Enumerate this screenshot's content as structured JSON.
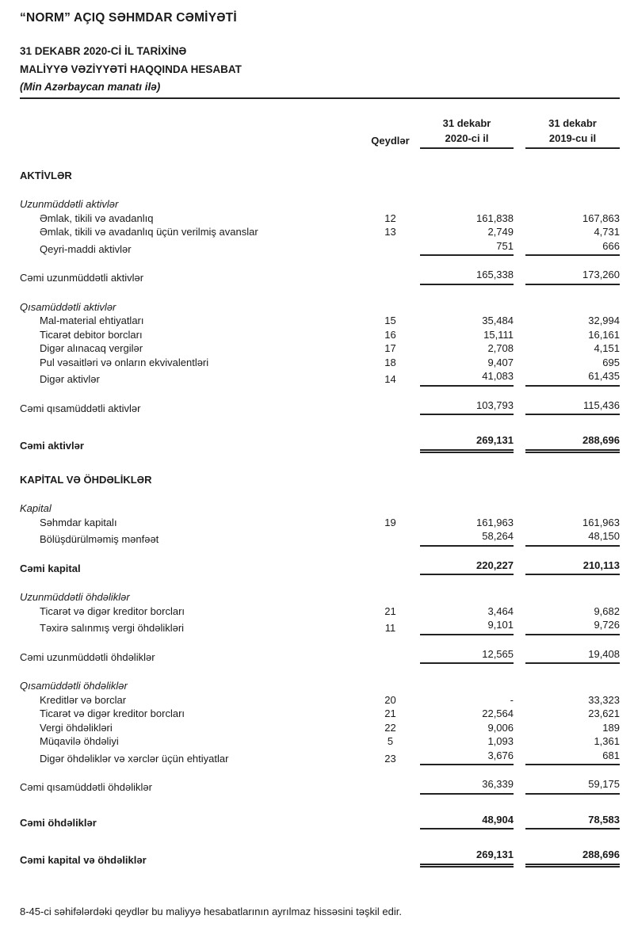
{
  "page": {
    "title": "“NORM” AÇIQ SƏHMDAR CƏMİYƏTİ",
    "subtitle_line1": "31 DEKABR 2020-Cİ İL TARİXİNƏ",
    "subtitle_line2": "MALİYYƏ VƏZİYYƏTİ HAQQINDA HESABAT",
    "units_note": "(Min Azərbaycan manatı ilə)",
    "footer_note": "8-45-ci səhifələrdəki qeydlər bu maliyyə hesabatlarının ayrılmaz hissəsini təşkil edir."
  },
  "table": {
    "columns": {
      "notes_label": "Qeydlər",
      "col_2020_line1": "31 dekabr",
      "col_2020_line2": "2020-ci il",
      "col_2019_line1": "31 dekabr",
      "col_2019_line2": "2019-cu il"
    },
    "rows": [
      {
        "kind": "section",
        "label": "AKTİVLƏR",
        "note": "",
        "v2020": "",
        "v2019": ""
      },
      {
        "kind": "group",
        "label": "Uzunmüddətli aktivlər",
        "note": "",
        "v2020": "",
        "v2019": ""
      },
      {
        "kind": "item",
        "label": "Əmlak, tikili və avadanlıq",
        "note": "12",
        "v2020": "161,838",
        "v2019": "167,863"
      },
      {
        "kind": "item",
        "label": "Əmlak, tikili və avadanlıq üçün verilmiş avanslar",
        "note": "13",
        "v2020": "2,749",
        "v2019": "4,731"
      },
      {
        "kind": "item",
        "label": "Qeyri-maddi aktivlər",
        "note": "",
        "v2020": "751",
        "v2019": "666",
        "rule": "single"
      },
      {
        "kind": "total",
        "label": "Cəmi uzunmüddətli aktivlər",
        "note": "",
        "v2020": "165,338",
        "v2019": "173,260",
        "rule": "single"
      },
      {
        "kind": "group",
        "label": "Qısamüddətli aktivlər",
        "note": "",
        "v2020": "",
        "v2019": ""
      },
      {
        "kind": "item",
        "label": "Mal-material ehtiyatları",
        "note": "15",
        "v2020": "35,484",
        "v2019": "32,994"
      },
      {
        "kind": "item",
        "label": "Ticarət debitor borcları",
        "note": "16",
        "v2020": "15,111",
        "v2019": "16,161"
      },
      {
        "kind": "item",
        "label": "Digər alınacaq vergilər",
        "note": "17",
        "v2020": "2,708",
        "v2019": "4,151"
      },
      {
        "kind": "item",
        "label": "Pul vəsaitləri və onların ekvivalentləri",
        "note": "18",
        "v2020": "9,407",
        "v2019": "695"
      },
      {
        "kind": "item",
        "label": "Digər aktivlər",
        "note": "14",
        "v2020": "41,083",
        "v2019": "61,435",
        "rule": "single"
      },
      {
        "kind": "total",
        "label": "Cəmi qısamüddətli aktivlər",
        "note": "",
        "v2020": "103,793",
        "v2019": "115,436",
        "rule": "single"
      },
      {
        "kind": "total",
        "label": "Cəmi aktivlər",
        "note": "",
        "v2020": "269,131",
        "v2019": "288,696",
        "rule": "double",
        "bold": true
      },
      {
        "kind": "section",
        "label": "KAPİTAL VƏ ÖHDƏLİKLƏR",
        "note": "",
        "v2020": "",
        "v2019": ""
      },
      {
        "kind": "group",
        "label": "Kapital",
        "note": "",
        "v2020": "",
        "v2019": ""
      },
      {
        "kind": "item",
        "label": "Səhmdar kapitalı",
        "note": "19",
        "v2020": "161,963",
        "v2019": "161,963"
      },
      {
        "kind": "item",
        "label": "Bölüşdürülməmiş mənfəət",
        "note": "",
        "v2020": "58,264",
        "v2019": "48,150",
        "rule": "single"
      },
      {
        "kind": "total",
        "label": "Cəmi kapital",
        "note": "",
        "v2020": "220,227",
        "v2019": "210,113",
        "rule": "single",
        "bold": true
      },
      {
        "kind": "group",
        "label": "Uzunmüddətli öhdəliklər",
        "note": "",
        "v2020": "",
        "v2019": ""
      },
      {
        "kind": "item",
        "label": "Ticarət və digər kreditor borcları",
        "note": "21",
        "v2020": "3,464",
        "v2019": "9,682"
      },
      {
        "kind": "item",
        "label": "Təxirə salınmış vergi öhdəlikləri",
        "note": "11",
        "v2020": "9,101",
        "v2019": "9,726",
        "rule": "single"
      },
      {
        "kind": "total",
        "label": "Cəmi uzunmüddətli öhdəliklər",
        "note": "",
        "v2020": "12,565",
        "v2019": "19,408",
        "rule": "single"
      },
      {
        "kind": "group",
        "label": "Qısamüddətli öhdəliklər",
        "note": "",
        "v2020": "",
        "v2019": ""
      },
      {
        "kind": "item",
        "label": "Kreditlər və borclar",
        "note": "20",
        "v2020": "-",
        "v2019": "33,323"
      },
      {
        "kind": "item",
        "label": "Ticarət və digər kreditor borcları",
        "note": "21",
        "v2020": "22,564",
        "v2019": "23,621"
      },
      {
        "kind": "item",
        "label": "Vergi öhdəlikləri",
        "note": "22",
        "v2020": "9,006",
        "v2019": "189"
      },
      {
        "kind": "item",
        "label": "Müqavilə öhdəliyi",
        "note": "5",
        "v2020": "1,093",
        "v2019": "1,361"
      },
      {
        "kind": "item",
        "label": "Digər öhdəliklər və xərclər üçün ehtiyatlar",
        "note": "23",
        "v2020": "3,676",
        "v2019": "681",
        "rule": "single"
      },
      {
        "kind": "total",
        "label": "Cəmi qısamüddətli öhdəliklər",
        "note": "",
        "v2020": "36,339",
        "v2019": "59,175",
        "rule": "single"
      },
      {
        "kind": "total",
        "label": "Cəmi öhdəliklər",
        "note": "",
        "v2020": "48,904",
        "v2019": "78,583",
        "rule": "single",
        "bold": true
      },
      {
        "kind": "total",
        "label": "Cəmi kapital və öhdəliklər",
        "note": "",
        "v2020": "269,131",
        "v2019": "288,696",
        "rule": "double",
        "bold": true
      }
    ]
  }
}
